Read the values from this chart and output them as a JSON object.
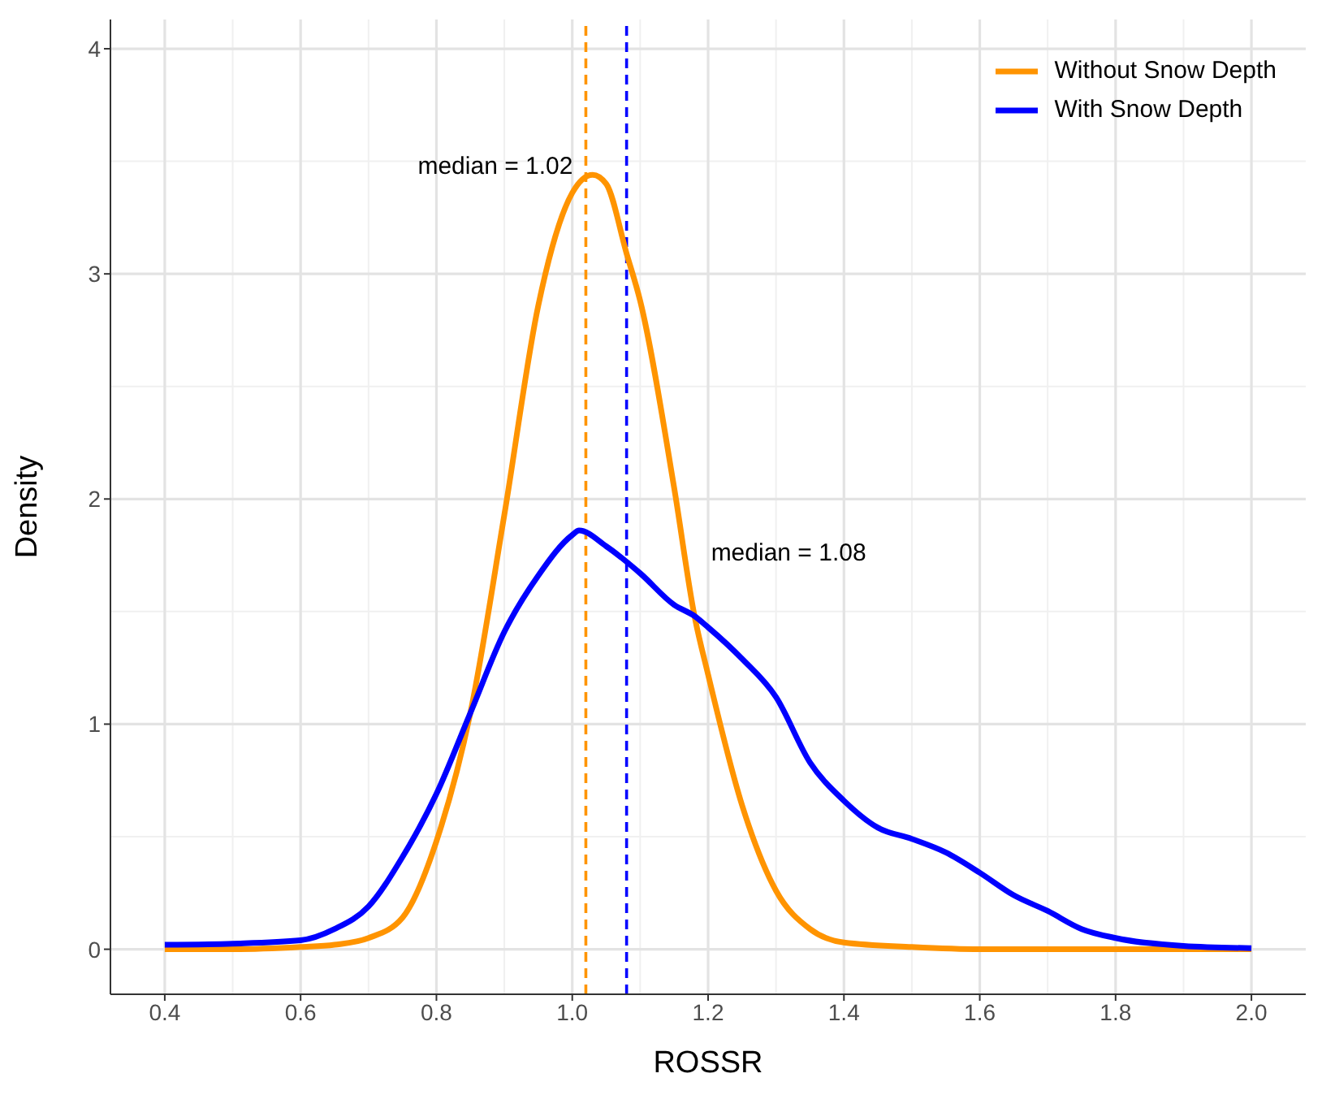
{
  "chart_data": {
    "type": "line",
    "xlabel": "ROSSR",
    "ylabel": "Density",
    "xlim": [
      0.32,
      2.08
    ],
    "ylim": [
      -0.2,
      4.13
    ],
    "xticks": [
      {
        "value": 0.4,
        "label": "0.4"
      },
      {
        "value": 0.6,
        "label": "0.6"
      },
      {
        "value": 0.8,
        "label": "0.8"
      },
      {
        "value": 1.0,
        "label": "1.0"
      },
      {
        "value": 1.2,
        "label": "1.2"
      },
      {
        "value": 1.4,
        "label": "1.4"
      },
      {
        "value": 1.6,
        "label": "1.6"
      },
      {
        "value": 1.8,
        "label": "1.8"
      },
      {
        "value": 2.0,
        "label": "2.0"
      }
    ],
    "yticks": [
      0,
      1,
      2,
      3,
      4
    ],
    "grid": true,
    "legend": "top right",
    "marker": "none",
    "line_style": "solid",
    "series": [
      {
        "name": "Without Snow Depth",
        "color": "#ff9400",
        "x": [
          0.4,
          0.5,
          0.6,
          0.65,
          0.7,
          0.75,
          0.8,
          0.85,
          0.9,
          0.95,
          1.0,
          1.03,
          1.05,
          1.08,
          1.1,
          1.15,
          1.18,
          1.2,
          1.25,
          1.3,
          1.35,
          1.4,
          1.5,
          1.6,
          1.8,
          2.0
        ],
        "values": [
          0,
          0,
          0.01,
          0.02,
          0.05,
          0.14,
          0.48,
          1.05,
          1.93,
          2.86,
          3.36,
          3.44,
          3.4,
          3.09,
          2.88,
          2.05,
          1.48,
          1.22,
          0.64,
          0.26,
          0.09,
          0.03,
          0.01,
          0,
          0,
          0
        ]
      },
      {
        "name": "With Snow Depth",
        "color": "#0000ff",
        "x": [
          0.4,
          0.5,
          0.6,
          0.65,
          0.7,
          0.75,
          0.8,
          0.85,
          0.9,
          0.95,
          1.0,
          1.01,
          1.05,
          1.1,
          1.15,
          1.18,
          1.2,
          1.25,
          1.3,
          1.35,
          1.4,
          1.45,
          1.5,
          1.55,
          1.6,
          1.65,
          1.7,
          1.75,
          1.8,
          1.9,
          2.0
        ],
        "values": [
          0.02,
          0.025,
          0.04,
          0.09,
          0.19,
          0.41,
          0.69,
          1.05,
          1.41,
          1.66,
          1.84,
          1.86,
          1.79,
          1.67,
          1.53,
          1.48,
          1.43,
          1.29,
          1.12,
          0.83,
          0.66,
          0.54,
          0.49,
          0.43,
          0.34,
          0.24,
          0.17,
          0.09,
          0.05,
          0.015,
          0.005
        ]
      }
    ],
    "ref_lines": [
      {
        "axis": "x",
        "value": 1.02,
        "color": "#ff9400",
        "line_style": "dashed"
      },
      {
        "axis": "x",
        "value": 1.08,
        "color": "#0000ff",
        "line_style": "dashed"
      }
    ],
    "annotations": [
      "median = 1.02",
      "median = 1.08"
    ]
  }
}
